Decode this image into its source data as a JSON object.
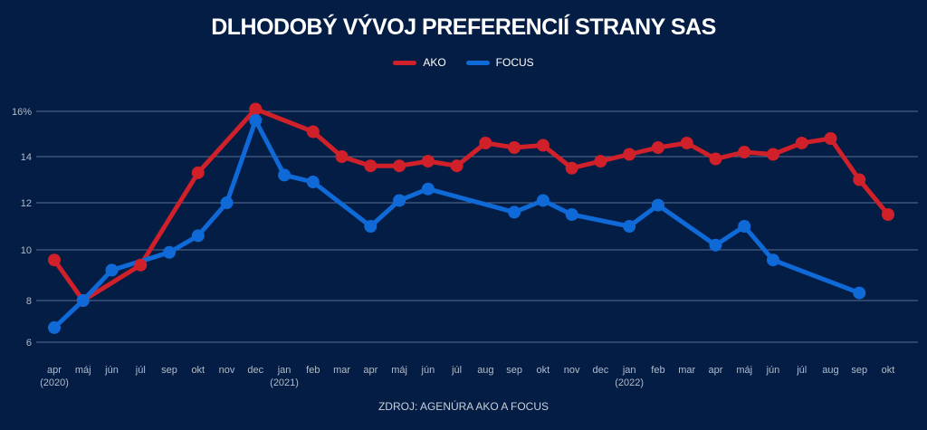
{
  "chart_data": {
    "type": "line",
    "title": "DLHODOBÝ VÝVOJ PREFERENCIÍ STRANY SAS",
    "source": "ZDROJ: AGENÚRA AKO A FOCUS",
    "xlabel": "",
    "ylabel": "",
    "ylim": [
      6,
      16
    ],
    "y_ticks": [
      {
        "value": 16,
        "label": "16%"
      },
      {
        "value": 14,
        "label": "14"
      },
      {
        "value": 12,
        "label": "12"
      },
      {
        "value": 10,
        "label": "10"
      },
      {
        "value": 8,
        "label": "8"
      },
      {
        "value": 6,
        "label": "6"
      }
    ],
    "grid": true,
    "legend_placement": "top-center",
    "categories": [
      "apr",
      "máj",
      "jún",
      "júl",
      "sep",
      "okt",
      "nov",
      "dec",
      "jan",
      "feb",
      "mar",
      "apr",
      "máj",
      "jún",
      "júl",
      "aug",
      "sep",
      "okt",
      "nov",
      "dec",
      "jan",
      "feb",
      "mar",
      "apr",
      "máj",
      "jún",
      "júl",
      "aug",
      "sep",
      "okt"
    ],
    "year_labels": {
      "0": "(2020)",
      "8": "(2021)",
      "20": "(2022)"
    },
    "series": [
      {
        "name": "AKO",
        "color": "#d0202a",
        "values": [
          9.6,
          8.0,
          null,
          9.4,
          null,
          13.3,
          null,
          16.1,
          null,
          15.1,
          14.0,
          13.6,
          13.6,
          13.8,
          13.6,
          14.6,
          14.4,
          14.5,
          13.5,
          13.8,
          14.1,
          14.4,
          14.6,
          13.9,
          14.2,
          14.1,
          14.6,
          14.8,
          13.0,
          11.5
        ]
      },
      {
        "name": "FOCUS",
        "color": "#0f6ad8",
        "values": [
          6.7,
          8.0,
          9.2,
          null,
          9.9,
          10.6,
          12.0,
          15.6,
          13.2,
          12.9,
          null,
          11.0,
          12.1,
          12.6,
          null,
          null,
          11.6,
          12.1,
          11.5,
          null,
          11.0,
          11.9,
          null,
          10.2,
          11.0,
          9.6,
          null,
          null,
          8.3,
          null
        ]
      }
    ]
  }
}
